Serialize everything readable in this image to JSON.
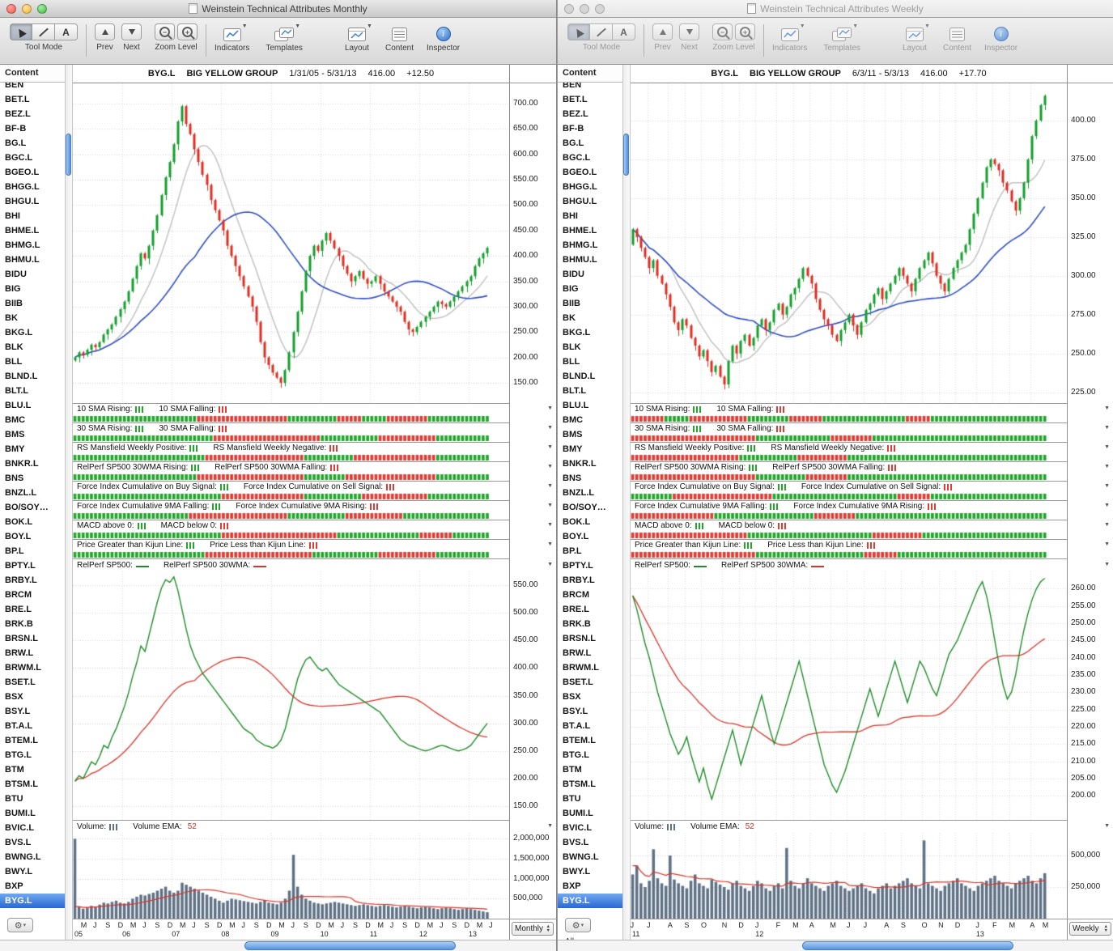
{
  "windows": {
    "left": {
      "title": "Weinstein Technical Attributes Monthly",
      "periodicity": "Monthly",
      "footer_filter": "",
      "header": {
        "symbol": "BYG.L",
        "name": "BIG YELLOW GROUP",
        "range": "1/31/05 - 5/31/13",
        "price": "416.00",
        "change": "+12.50"
      }
    },
    "right": {
      "title": "Weinstein Technical Attributes Weekly",
      "periodicity": "Weekly",
      "footer_filter": "All",
      "header": {
        "symbol": "BYG.L",
        "name": "BIG YELLOW GROUP",
        "range": "6/3/11 - 5/3/13",
        "price": "416.00",
        "change": "+17.70"
      }
    }
  },
  "toolbar": {
    "tool_mode": "Tool Mode",
    "text_tool": "A",
    "prev": "Prev",
    "next": "Next",
    "zoom": "Zoom Level",
    "indicators": "Indicators",
    "templates": "Templates",
    "layout": "Layout",
    "content": "Content",
    "inspector": "Inspector"
  },
  "sidebar": {
    "header": "Content",
    "selected": "BYG.L",
    "tickers": [
      "BEN",
      "BET.L",
      "BEZ.L",
      "BF-B",
      "BG.L",
      "BGC.L",
      "BGEO.L",
      "BHGG.L",
      "BHGU.L",
      "BHI",
      "BHME.L",
      "BHMG.L",
      "BHMU.L",
      "BIDU",
      "BIG",
      "BIIB",
      "BK",
      "BKG.L",
      "BLK",
      "BLL",
      "BLND.L",
      "BLT.L",
      "BLU.L",
      "BMC",
      "BMS",
      "BMY",
      "BNKR.L",
      "BNS",
      "BNZL.L",
      "BO/SOY…",
      "BOK.L",
      "BOY.L",
      "BP.L",
      "BPTY.L",
      "BRBY.L",
      "BRCM",
      "BRE.L",
      "BRK.B",
      "BRSN.L",
      "BRW.L",
      "BRWM.L",
      "BSET.L",
      "BSX",
      "BSY.L",
      "BT.A.L",
      "BTEM.L",
      "BTG.L",
      "BTM",
      "BTSM.L",
      "BTU",
      "BUMI.L",
      "BVIC.L",
      "BVS.L",
      "BWNG.L",
      "BWY.L",
      "BXP",
      "BYG.L"
    ]
  },
  "indicator_rows": [
    {
      "a": "10 SMA Rising:",
      "b": "10 SMA Falling:"
    },
    {
      "a": "30 SMA Rising:",
      "b": "30 SMA Falling:"
    },
    {
      "a": "RS Mansfield Weekly Positive:",
      "b": "RS Mansfield Weekly Negative:"
    },
    {
      "a": "RelPerf SP500 30WMA Rising:",
      "b": "RelPerf SP500 30WMA Falling:"
    },
    {
      "a": "Force Index Cumulative on Buy Signal:",
      "b": "Force Index Cumulative on Sell Signal:"
    },
    {
      "a": "Force Index Cumulative 9MA Falling:",
      "b": "Force Index Cumulative 9MA Rising:"
    },
    {
      "a": "MACD above 0:",
      "b": "MACD below 0:"
    },
    {
      "a": "Price Greater than Kijun Line:",
      "b": "Price Less than Kijun Line:"
    }
  ],
  "relperf_labels": {
    "a": "RelPerf SP500:",
    "b": "RelPerf SP500 30WMA:"
  },
  "volume_labels": {
    "a": "Volume:",
    "b": "Volume EMA:",
    "ema_value": "52"
  },
  "colors": {
    "candle_up": "#149f2c",
    "candle_down": "#dd2e22",
    "sma10": "#c3c3c3",
    "sma30": "#2f4fc8",
    "relperf": "#1e8c28",
    "relperf_wma": "#dd3328",
    "volume_bar": "#5f7285",
    "volume_ema": "#dd3328",
    "tick_green": "#21a82b",
    "tick_red": "#e23b34",
    "selection": "#2a67d5"
  },
  "chart_data": {
    "monthly": {
      "price": {
        "type": "candlestick",
        "title": "BYG.L BIG YELLOW GROUP Monthly",
        "ylim": [
          110,
          740
        ],
        "yticks": [
          700,
          650,
          600,
          550,
          500,
          450,
          400,
          350,
          300,
          250,
          200,
          150
        ],
        "vlines": [
          12,
          24,
          36,
          48,
          60,
          72,
          84,
          96
        ],
        "closes": [
          200,
          210,
          205,
          215,
          225,
          220,
          230,
          245,
          255,
          265,
          280,
          295,
          310,
          330,
          355,
          380,
          405,
          395,
          420,
          450,
          480,
          520,
          555,
          585,
          620,
          665,
          695,
          660,
          640,
          610,
          585,
          560,
          540,
          510,
          490,
          470,
          450,
          420,
          400,
          380,
          360,
          340,
          320,
          300,
          270,
          230,
          200,
          185,
          170,
          160,
          150,
          175,
          210,
          250,
          290,
          330,
          370,
          400,
          420,
          410,
          430,
          445,
          430,
          415,
          400,
          380,
          365,
          350,
          360,
          370,
          355,
          345,
          350,
          360,
          345,
          330,
          320,
          310,
          300,
          290,
          270,
          255,
          250,
          260,
          270,
          280,
          290,
          300,
          310,
          305,
          300,
          310,
          320,
          330,
          340,
          350,
          360,
          380,
          395,
          405,
          416
        ],
        "overlays": [
          "10 SMA",
          "30 SMA"
        ],
        "x_months": [
          [
            "M",
            2
          ],
          [
            "J",
            5
          ],
          [
            "S",
            8
          ],
          [
            "D",
            11
          ],
          [
            "M",
            14
          ],
          [
            "J",
            17
          ],
          [
            "S",
            20
          ],
          [
            "D",
            23
          ],
          [
            "M",
            26
          ],
          [
            "J",
            29
          ],
          [
            "S",
            32
          ],
          [
            "D",
            35
          ],
          [
            "M",
            38
          ],
          [
            "J",
            41
          ],
          [
            "S",
            44
          ],
          [
            "D",
            47
          ],
          [
            "M",
            50
          ],
          [
            "J",
            53
          ],
          [
            "S",
            56
          ],
          [
            "D",
            59
          ],
          [
            "M",
            62
          ],
          [
            "J",
            65
          ],
          [
            "S",
            68
          ],
          [
            "D",
            71
          ],
          [
            "M",
            74
          ],
          [
            "J",
            77
          ],
          [
            "S",
            80
          ],
          [
            "D",
            83
          ],
          [
            "M",
            86
          ],
          [
            "J",
            89
          ],
          [
            "S",
            92
          ],
          [
            "D",
            95
          ],
          [
            "M",
            98
          ],
          [
            "J",
            101
          ]
        ],
        "x_years": [
          [
            "05",
            0
          ],
          [
            "06",
            12
          ],
          [
            "07",
            24
          ],
          [
            "08",
            36
          ],
          [
            "09",
            48
          ],
          [
            "10",
            60
          ],
          [
            "11",
            72
          ],
          [
            "12",
            84
          ],
          [
            "13",
            96
          ]
        ]
      },
      "relperf": {
        "type": "line",
        "series_name": "RelPerf SP500",
        "wma_name": "RelPerf SP500 30WMA",
        "ylim": [
          125,
          575
        ],
        "yticks": [
          550,
          500,
          450,
          400,
          350,
          300,
          250,
          200,
          150
        ],
        "values": [
          195,
          205,
          200,
          215,
          230,
          225,
          240,
          260,
          255,
          275,
          290,
          310,
          330,
          355,
          385,
          410,
          440,
          430,
          460,
          490,
          520,
          545,
          560,
          555,
          565,
          540,
          505,
          470,
          440,
          420,
          405,
          390,
          380,
          370,
          360,
          350,
          340,
          330,
          320,
          310,
          300,
          290,
          285,
          280,
          270,
          265,
          260,
          258,
          255,
          260,
          270,
          290,
          320,
          350,
          380,
          400,
          415,
          420,
          410,
          400,
          395,
          400,
          390,
          380,
          370,
          365,
          360,
          355,
          350,
          345,
          340,
          335,
          330,
          325,
          320,
          310,
          300,
          290,
          280,
          270,
          265,
          260,
          258,
          255,
          252,
          250,
          252,
          255,
          258,
          260,
          258,
          255,
          252,
          250,
          252,
          255,
          260,
          270,
          280,
          290,
          300
        ]
      },
      "volume": {
        "type": "bar",
        "ylim_k": [
          0,
          2150
        ],
        "yticks_k": [
          2000,
          1500,
          1000,
          500
        ],
        "values_k": [
          2000,
          300,
          250,
          280,
          320,
          300,
          350,
          400,
          380,
          420,
          450,
          400,
          380,
          420,
          500,
          550,
          600,
          580,
          620,
          650,
          700,
          750,
          800,
          700,
          650,
          700,
          900,
          850,
          800,
          750,
          700,
          650,
          600,
          550,
          500,
          450,
          400,
          450,
          500,
          480,
          460,
          440,
          420,
          400,
          380,
          420,
          450,
          400,
          380,
          360,
          400,
          500,
          700,
          1600,
          800,
          600,
          500,
          450,
          400,
          380,
          360,
          380,
          400,
          420,
          400,
          380,
          360,
          340,
          320,
          340,
          360,
          340,
          320,
          300,
          320,
          340,
          320,
          300,
          280,
          300,
          320,
          300,
          280,
          260,
          280,
          300,
          280,
          260,
          240,
          260,
          280,
          260,
          240,
          220,
          240,
          260,
          240,
          220,
          200,
          180,
          160
        ]
      },
      "strips": [
        "G30R22G12R6G6R10G15",
        "G34R26G14R14G13",
        "G32R24G12R20G13",
        "G30R26G10R22G13",
        "G36R20G14R16G15",
        "G28R24G14R14G21",
        "G36R28G20R8G9",
        "G32R26G16R14G13"
      ]
    },
    "weekly": {
      "price": {
        "type": "candlestick",
        "title": "BYG.L BIG YELLOW GROUP Weekly",
        "ylim": [
          218,
          424
        ],
        "yticks": [
          400,
          375,
          350,
          325,
          300,
          275,
          250,
          225
        ],
        "vlines": [
          4,
          9,
          13,
          17,
          22,
          26,
          30,
          35,
          39,
          43,
          48,
          52,
          56,
          61,
          65,
          70,
          74,
          78,
          83,
          87,
          91,
          96
        ],
        "closes": [
          330,
          325,
          318,
          312,
          305,
          310,
          300,
          295,
          288,
          280,
          270,
          265,
          272,
          268,
          260,
          255,
          248,
          252,
          245,
          238,
          242,
          235,
          230,
          245,
          255,
          250,
          258,
          262,
          255,
          260,
          268,
          272,
          265,
          270,
          278,
          282,
          275,
          280,
          288,
          292,
          298,
          305,
          300,
          295,
          285,
          278,
          272,
          268,
          262,
          258,
          265,
          270,
          275,
          268,
          262,
          270,
          278,
          282,
          288,
          292,
          285,
          290,
          295,
          300,
          305,
          300,
          295,
          290,
          298,
          305,
          310,
          315,
          308,
          300,
          295,
          290,
          298,
          305,
          310,
          315,
          320,
          330,
          340,
          350,
          360,
          370,
          375,
          372,
          368,
          360,
          355,
          348,
          342,
          350,
          360,
          375,
          390,
          400,
          410,
          416
        ],
        "overlays": [
          "10 SMA",
          "30 SMA"
        ],
        "x_months": [
          [
            "J",
            0
          ],
          [
            "J",
            4
          ],
          [
            "A",
            9
          ],
          [
            "S",
            13
          ],
          [
            "O",
            17
          ],
          [
            "N",
            22
          ],
          [
            "D",
            26
          ],
          [
            "J",
            30
          ],
          [
            "F",
            35
          ],
          [
            "M",
            39
          ],
          [
            "A",
            43
          ],
          [
            "M",
            48
          ],
          [
            "J",
            52
          ],
          [
            "J",
            56
          ],
          [
            "A",
            61
          ],
          [
            "S",
            65
          ],
          [
            "O",
            70
          ],
          [
            "N",
            74
          ],
          [
            "D",
            78
          ],
          [
            "J",
            83
          ],
          [
            "F",
            87
          ],
          [
            "M",
            91
          ],
          [
            "A",
            96
          ],
          [
            "M",
            99
          ]
        ],
        "x_years": [
          [
            "11",
            0
          ],
          [
            "12",
            30
          ],
          [
            "13",
            83
          ]
        ]
      },
      "relperf": {
        "type": "line",
        "series_name": "RelPerf SP500",
        "wma_name": "RelPerf SP500 30WMA",
        "ylim": [
          193,
          265
        ],
        "yticks": [
          260,
          255,
          250,
          245,
          240,
          235,
          230,
          225,
          220,
          215,
          210,
          205,
          200
        ],
        "values": [
          258,
          254,
          249,
          244,
          240,
          235,
          230,
          226,
          222,
          218,
          215,
          212,
          214,
          217,
          212,
          208,
          204,
          208,
          203,
          199,
          203,
          207,
          211,
          215,
          219,
          214,
          209,
          213,
          217,
          221,
          225,
          229,
          224,
          219,
          215,
          219,
          223,
          227,
          231,
          235,
          239,
          234,
          229,
          224,
          219,
          214,
          209,
          206,
          203,
          201,
          204,
          207,
          211,
          215,
          219,
          223,
          227,
          231,
          227,
          223,
          227,
          231,
          235,
          239,
          235,
          231,
          227,
          231,
          235,
          239,
          237,
          234,
          231,
          229,
          233,
          237,
          241,
          243,
          245,
          248,
          251,
          254,
          257,
          260,
          262,
          258,
          252,
          245,
          238,
          232,
          228,
          230,
          235,
          242,
          248,
          253,
          257,
          260,
          262,
          263
        ]
      },
      "volume": {
        "type": "bar",
        "ylim_k": [
          0,
          680
        ],
        "yticks_k": [
          500,
          250
        ],
        "values_k": [
          350,
          420,
          280,
          250,
          300,
          550,
          320,
          280,
          260,
          500,
          310,
          280,
          260,
          240,
          300,
          350,
          280,
          260,
          240,
          310,
          290,
          270,
          250,
          230,
          280,
          300,
          260,
          240,
          220,
          260,
          300,
          280,
          240,
          220,
          260,
          280,
          240,
          560,
          300,
          260,
          240,
          280,
          320,
          280,
          260,
          240,
          220,
          260,
          280,
          300,
          260,
          240,
          220,
          240,
          260,
          280,
          240,
          220,
          200,
          240,
          260,
          280,
          240,
          260,
          280,
          300,
          320,
          280,
          260,
          240,
          620,
          280,
          260,
          240,
          220,
          260,
          280,
          300,
          320,
          280,
          260,
          240,
          220,
          260,
          280,
          300,
          320,
          340,
          300,
          280,
          260,
          240,
          280,
          300,
          320,
          340,
          300,
          280,
          320,
          360
        ]
      },
      "strips": [
        "R8G6R14G10R8G20R6G28",
        "R30G18R10G42",
        "R26G14R12G48",
        "R30G12R10G48",
        "G10R24G30R8G28",
        "R20G24R10G46",
        "R28G30R12G30",
        "R30G26R8G36"
      ]
    }
  }
}
